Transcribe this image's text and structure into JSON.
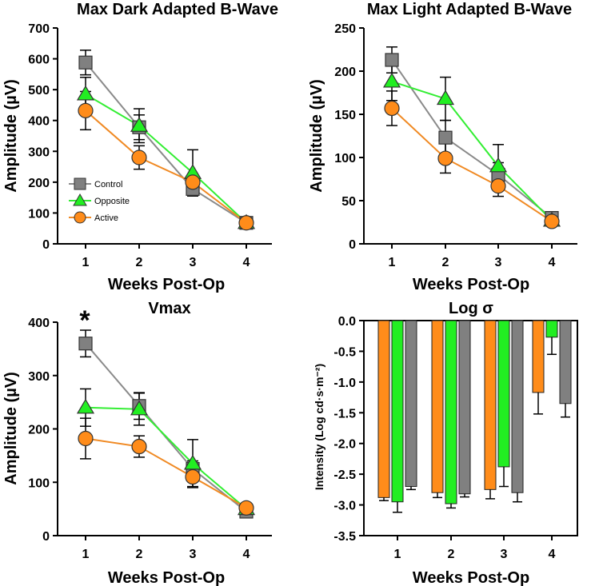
{
  "colors": {
    "control": "#808080",
    "opposite": "#22ee22",
    "active": "#ff8c1a",
    "control_line": "#8a8a8a",
    "opposite_line": "#33ee33",
    "active_line": "#f08a24"
  },
  "legend_labels": [
    "Control",
    "Opposite",
    "Active"
  ],
  "chart_data": [
    {
      "type": "line",
      "title": "Max Dark Adapted B-Wave",
      "xlabel": "Weeks Post-Op",
      "ylabel": "Amplitude (µV)",
      "x": [
        1,
        2,
        3,
        4
      ],
      "ylim": [
        0,
        700
      ],
      "yticks": [
        0,
        100,
        200,
        300,
        400,
        500,
        600,
        700
      ],
      "legend": "inside-lower-left",
      "series": [
        {
          "name": "Control",
          "marker": "square",
          "values": [
            588,
            378,
            178,
            68
          ],
          "err": [
            40,
            40,
            18,
            8
          ]
        },
        {
          "name": "Opposite",
          "marker": "triangle",
          "values": [
            485,
            383,
            230,
            68
          ],
          "err": [
            55,
            55,
            75,
            8
          ]
        },
        {
          "name": "Active",
          "marker": "circle",
          "values": [
            432,
            280,
            200,
            68
          ],
          "err": [
            62,
            38,
            22,
            8
          ]
        }
      ]
    },
    {
      "type": "line",
      "title": "Max Light Adapted B-Wave",
      "xlabel": "Weeks Post-Op",
      "ylabel": "Amplitude (µV)",
      "x": [
        1,
        2,
        3,
        4
      ],
      "ylim": [
        0,
        250
      ],
      "yticks": [
        0,
        50,
        100,
        150,
        200,
        250
      ],
      "series": [
        {
          "name": "Control",
          "marker": "square",
          "values": [
            213,
            123,
            80,
            30
          ],
          "err": [
            15,
            20,
            14,
            4
          ]
        },
        {
          "name": "Opposite",
          "marker": "triangle",
          "values": [
            188,
            168,
            90,
            27
          ],
          "err": [
            22,
            25,
            25,
            4
          ]
        },
        {
          "name": "Active",
          "marker": "circle",
          "values": [
            157,
            99,
            67,
            26
          ],
          "err": [
            20,
            17,
            12,
            4
          ]
        }
      ]
    },
    {
      "type": "line",
      "title": "Vmax",
      "xlabel": "Weeks Post-Op",
      "ylabel": "Amplitude (µV)",
      "x": [
        1,
        2,
        3,
        4
      ],
      "ylim": [
        0,
        400
      ],
      "yticks": [
        0,
        100,
        200,
        300,
        400
      ],
      "annotation": "*",
      "series": [
        {
          "name": "Control",
          "marker": "square",
          "values": [
            360,
            243,
            125,
            45
          ],
          "err": [
            25,
            25,
            15,
            5
          ]
        },
        {
          "name": "Opposite",
          "marker": "triangle",
          "values": [
            240,
            237,
            135,
            50
          ],
          "err": [
            35,
            30,
            45,
            5
          ]
        },
        {
          "name": "Active",
          "marker": "circle",
          "values": [
            182,
            167,
            110,
            52
          ],
          "err": [
            38,
            20,
            18,
            5
          ]
        }
      ]
    },
    {
      "type": "bar",
      "title": "Log σ",
      "xlabel": "Weeks Post-Op",
      "ylabel": "Intensity (Log cd·s·m⁻²)",
      "categories": [
        "1",
        "2",
        "3",
        "4"
      ],
      "ylim": [
        -3.5,
        0.0
      ],
      "yticks": [
        "0.0",
        "-0.5",
        "-1.0",
        "-1.5",
        "-2.0",
        "-2.5",
        "-3.0",
        "-3.5"
      ],
      "series": [
        {
          "name": "Active",
          "values": [
            -2.88,
            -2.8,
            -2.75,
            -1.17
          ],
          "err": [
            0.05,
            0.08,
            0.15,
            0.35
          ]
        },
        {
          "name": "Opposite",
          "values": [
            -2.95,
            -2.98,
            -2.38,
            -0.27
          ],
          "err": [
            0.17,
            0.07,
            0.32,
            0.28
          ]
        },
        {
          "name": "Control",
          "values": [
            -2.7,
            -2.82,
            -2.8,
            -1.35
          ],
          "err": [
            0.05,
            0.05,
            0.15,
            0.22
          ]
        }
      ]
    }
  ]
}
